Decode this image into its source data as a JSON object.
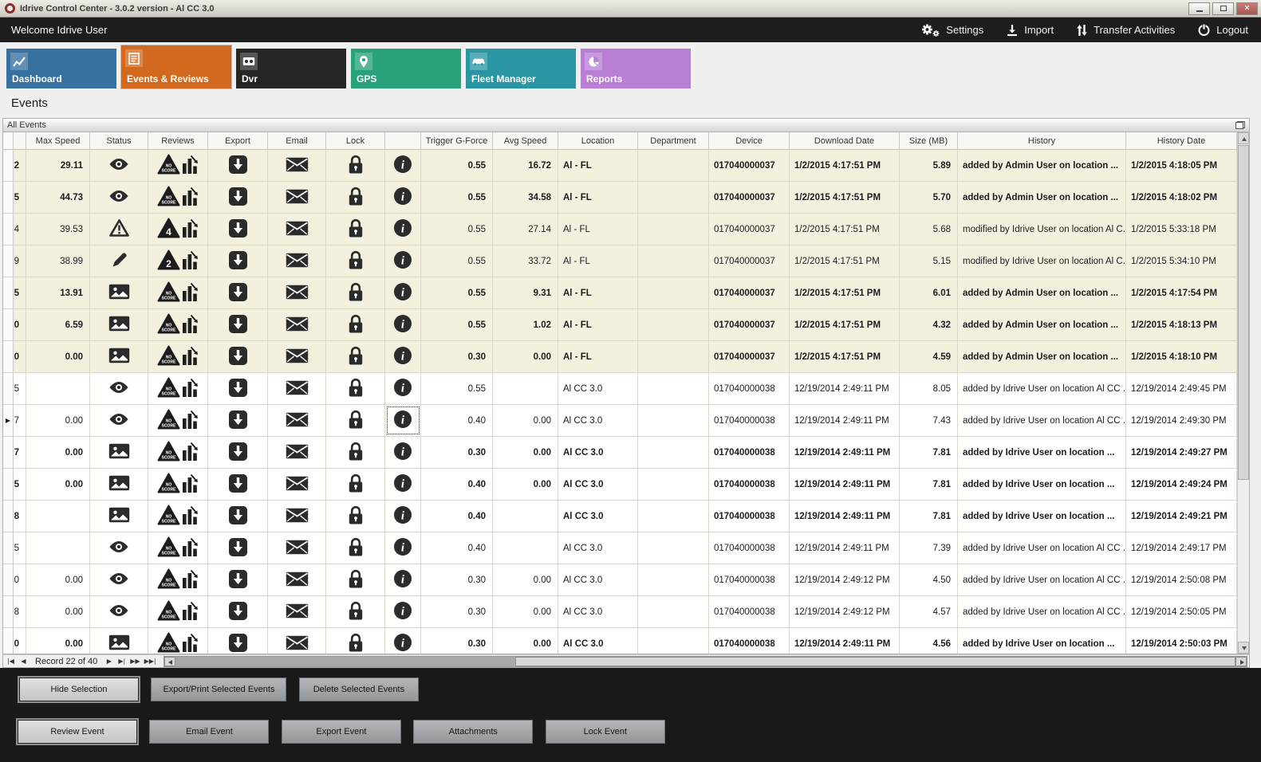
{
  "window": {
    "title": "Idrive Control Center - 3.0.2 version - Al CC 3.0"
  },
  "topbar": {
    "welcome": "Welcome Idrive User",
    "actions": [
      {
        "label": "Settings",
        "icon": "gears-icon"
      },
      {
        "label": "Import",
        "icon": "import-icon"
      },
      {
        "label": "Transfer Activities",
        "icon": "transfer-icon"
      },
      {
        "label": "Logout",
        "icon": "power-icon"
      }
    ]
  },
  "tabs": [
    {
      "label": "Dashboard",
      "icon": "chart-icon",
      "color": "#36719f",
      "active": false
    },
    {
      "label": "Events & Reviews",
      "icon": "form-icon",
      "color": "#d2691e",
      "active": true
    },
    {
      "label": "Dvr",
      "icon": "dvr-icon",
      "color": "#262626",
      "active": false
    },
    {
      "label": "GPS",
      "icon": "pin-icon",
      "color": "#29a27b",
      "active": false
    },
    {
      "label": "Fleet Manager",
      "icon": "truck-icon",
      "color": "#2b96a3",
      "active": false
    },
    {
      "label": "Reports",
      "icon": "pie-icon",
      "color": "#b87fd4",
      "active": false
    }
  ],
  "page": {
    "title": "Events",
    "panel_title": "All Events"
  },
  "table": {
    "columns": [
      "",
      "",
      "Max Speed",
      "Status",
      "Reviews",
      "Export",
      "Email",
      "Lock",
      "",
      "Trigger G-Force",
      "Avg Speed",
      "Location",
      "Department",
      "Device",
      "Download Date",
      "Size (MB)",
      "History",
      "History Date"
    ],
    "rows": [
      {
        "cut": "2",
        "max_speed": "29.11",
        "status": "eye-icon",
        "review": "NO SCORE",
        "trigger_g_force": "0.55",
        "avg_speed": "16.72",
        "location": "Al - FL",
        "department": "",
        "device": "017040000037",
        "download_date": "1/2/2015 4:17:51 PM",
        "size_mb": "5.89",
        "history": "added by Admin User on location ...",
        "history_date": "1/2/2015 4:18:05 PM",
        "bold": true,
        "beige": true,
        "marker": false,
        "selected": false
      },
      {
        "cut": "5",
        "max_speed": "44.73",
        "status": "eye-icon",
        "review": "NO SCORE",
        "trigger_g_force": "0.55",
        "avg_speed": "34.58",
        "location": "Al - FL",
        "department": "",
        "device": "017040000037",
        "download_date": "1/2/2015 4:17:51 PM",
        "size_mb": "5.70",
        "history": "added by Admin User on location ...",
        "history_date": "1/2/2015 4:18:02 PM",
        "bold": true,
        "beige": true,
        "marker": false,
        "selected": false
      },
      {
        "cut": "4",
        "max_speed": "39.53",
        "status": "warning-icon",
        "review": "4",
        "trigger_g_force": "0.55",
        "avg_speed": "27.14",
        "location": "Al - FL",
        "department": "",
        "device": "017040000037",
        "download_date": "1/2/2015 4:17:51 PM",
        "size_mb": "5.68",
        "history": "modified by Idrive User on location Al C...",
        "history_date": "1/2/2015 5:33:18 PM",
        "bold": false,
        "beige": true,
        "marker": false,
        "selected": false
      },
      {
        "cut": "9",
        "max_speed": "38.99",
        "status": "pencil-icon",
        "review": "2",
        "trigger_g_force": "0.55",
        "avg_speed": "33.72",
        "location": "Al - FL",
        "department": "",
        "device": "017040000037",
        "download_date": "1/2/2015 4:17:51 PM",
        "size_mb": "5.15",
        "history": "modified by Idrive User on location Al C...",
        "history_date": "1/2/2015 5:34:10 PM",
        "bold": false,
        "beige": true,
        "marker": false,
        "selected": false
      },
      {
        "cut": "5",
        "max_speed": "13.91",
        "status": "image-icon",
        "review": "NO SCORE",
        "trigger_g_force": "0.55",
        "avg_speed": "9.31",
        "location": "Al - FL",
        "department": "",
        "device": "017040000037",
        "download_date": "1/2/2015 4:17:51 PM",
        "size_mb": "6.01",
        "history": "added by Admin User on location ...",
        "history_date": "1/2/2015 4:17:54 PM",
        "bold": true,
        "beige": true,
        "marker": false,
        "selected": false
      },
      {
        "cut": "0",
        "max_speed": "6.59",
        "status": "image-icon",
        "review": "NO SCORE",
        "trigger_g_force": "0.55",
        "avg_speed": "1.02",
        "location": "Al - FL",
        "department": "",
        "device": "017040000037",
        "download_date": "1/2/2015 4:17:51 PM",
        "size_mb": "4.32",
        "history": "added by Admin User on location ...",
        "history_date": "1/2/2015 4:18:13 PM",
        "bold": true,
        "beige": true,
        "marker": false,
        "selected": false
      },
      {
        "cut": "0",
        "max_speed": "0.00",
        "status": "image-icon",
        "review": "NO SCORE",
        "trigger_g_force": "0.30",
        "avg_speed": "0.00",
        "location": "Al - FL",
        "department": "",
        "device": "017040000037",
        "download_date": "1/2/2015 4:17:51 PM",
        "size_mb": "4.59",
        "history": "added by Admin User on location ...",
        "history_date": "1/2/2015 4:18:10 PM",
        "bold": true,
        "beige": true,
        "marker": false,
        "selected": false
      },
      {
        "cut": "5",
        "max_speed": "",
        "status": "eye-icon",
        "review": "NO SCORE",
        "trigger_g_force": "0.55",
        "avg_speed": "",
        "location": "Al CC 3.0",
        "department": "",
        "device": "017040000038",
        "download_date": "12/19/2014 2:49:11 PM",
        "size_mb": "8.05",
        "history": "added by Idrive User on location Al CC ...",
        "history_date": "12/19/2014 2:49:45 PM",
        "bold": false,
        "beige": false,
        "marker": false,
        "selected": false
      },
      {
        "cut": "7",
        "max_speed": "0.00",
        "status": "eye-icon",
        "review": "NO SCORE",
        "trigger_g_force": "0.40",
        "avg_speed": "0.00",
        "location": "Al CC 3.0",
        "department": "",
        "device": "017040000038",
        "download_date": "12/19/2014 2:49:11 PM",
        "size_mb": "7.43",
        "history": "added by Idrive User on location Al CC ...",
        "history_date": "12/19/2014 2:49:30 PM",
        "bold": false,
        "beige": false,
        "marker": true,
        "selected": true
      },
      {
        "cut": "7",
        "max_speed": "0.00",
        "status": "image-icon",
        "review": "NO SCORE",
        "trigger_g_force": "0.30",
        "avg_speed": "0.00",
        "location": "Al CC 3.0",
        "department": "",
        "device": "017040000038",
        "download_date": "12/19/2014 2:49:11 PM",
        "size_mb": "7.81",
        "history": "added by Idrive User on location ...",
        "history_date": "12/19/2014 2:49:27 PM",
        "bold": true,
        "beige": false,
        "marker": false,
        "selected": false
      },
      {
        "cut": "5",
        "max_speed": "0.00",
        "status": "image-icon",
        "review": "NO SCORE",
        "trigger_g_force": "0.40",
        "avg_speed": "0.00",
        "location": "Al CC 3.0",
        "department": "",
        "device": "017040000038",
        "download_date": "12/19/2014 2:49:11 PM",
        "size_mb": "7.81",
        "history": "added by Idrive User on location ...",
        "history_date": "12/19/2014 2:49:24 PM",
        "bold": true,
        "beige": false,
        "marker": false,
        "selected": false
      },
      {
        "cut": "8",
        "max_speed": "",
        "status": "image-icon",
        "review": "NO SCORE",
        "trigger_g_force": "0.40",
        "avg_speed": "",
        "location": "Al CC 3.0",
        "department": "",
        "device": "017040000038",
        "download_date": "12/19/2014 2:49:11 PM",
        "size_mb": "7.81",
        "history": "added by Idrive User on location ...",
        "history_date": "12/19/2014 2:49:21 PM",
        "bold": true,
        "beige": false,
        "marker": false,
        "selected": false
      },
      {
        "cut": "5",
        "max_speed": "",
        "status": "eye-icon",
        "review": "NO SCORE",
        "trigger_g_force": "0.40",
        "avg_speed": "",
        "location": "Al CC 3.0",
        "department": "",
        "device": "017040000038",
        "download_date": "12/19/2014 2:49:11 PM",
        "size_mb": "7.39",
        "history": "added by Idrive User on location Al CC ...",
        "history_date": "12/19/2014 2:49:17 PM",
        "bold": false,
        "beige": false,
        "marker": false,
        "selected": false
      },
      {
        "cut": "0",
        "max_speed": "0.00",
        "status": "eye-icon",
        "review": "NO SCORE",
        "trigger_g_force": "0.30",
        "avg_speed": "0.00",
        "location": "Al CC 3.0",
        "department": "",
        "device": "017040000038",
        "download_date": "12/19/2014 2:49:12 PM",
        "size_mb": "4.50",
        "history": "added by Idrive User on location Al CC ...",
        "history_date": "12/19/2014 2:50:08 PM",
        "bold": false,
        "beige": false,
        "marker": false,
        "selected": false
      },
      {
        "cut": "8",
        "max_speed": "0.00",
        "status": "eye-icon",
        "review": "NO SCORE",
        "trigger_g_force": "0.30",
        "avg_speed": "0.00",
        "location": "Al CC 3.0",
        "department": "",
        "device": "017040000038",
        "download_date": "12/19/2014 2:49:12 PM",
        "size_mb": "4.57",
        "history": "added by Idrive User on location Al CC ...",
        "history_date": "12/19/2014 2:50:05 PM",
        "bold": false,
        "beige": false,
        "marker": false,
        "selected": false
      },
      {
        "cut": "0",
        "max_speed": "0.00",
        "status": "image-icon",
        "review": "NO SCORE",
        "trigger_g_force": "0.30",
        "avg_speed": "0.00",
        "location": "Al CC 3.0",
        "department": "",
        "device": "017040000038",
        "download_date": "12/19/2014 2:49:11 PM",
        "size_mb": "4.56",
        "history": "added by Idrive User on location ...",
        "history_date": "12/19/2014 2:50:03 PM",
        "bold": true,
        "beige": false,
        "marker": false,
        "selected": false
      }
    ]
  },
  "navigator": {
    "record_text": "Record 22 of 40",
    "first": "|◀",
    "prev": "◀",
    "next": "▶",
    "last": "▶|",
    "next_page": "▶▶",
    "last_page": "▶▶|"
  },
  "footer": {
    "row1": [
      "Hide Selection",
      "Export/Print Selected Events",
      "Delete Selected  Events"
    ],
    "row2": [
      "Review Event",
      "Email Event",
      "Export Event",
      "Attachments",
      "Lock Event"
    ]
  },
  "colors": {
    "topbar_bg": "#1d1d1d",
    "beige_row": "#f3f0dd",
    "active_tab": "#d2691e",
    "footer_bg": "#191919"
  }
}
